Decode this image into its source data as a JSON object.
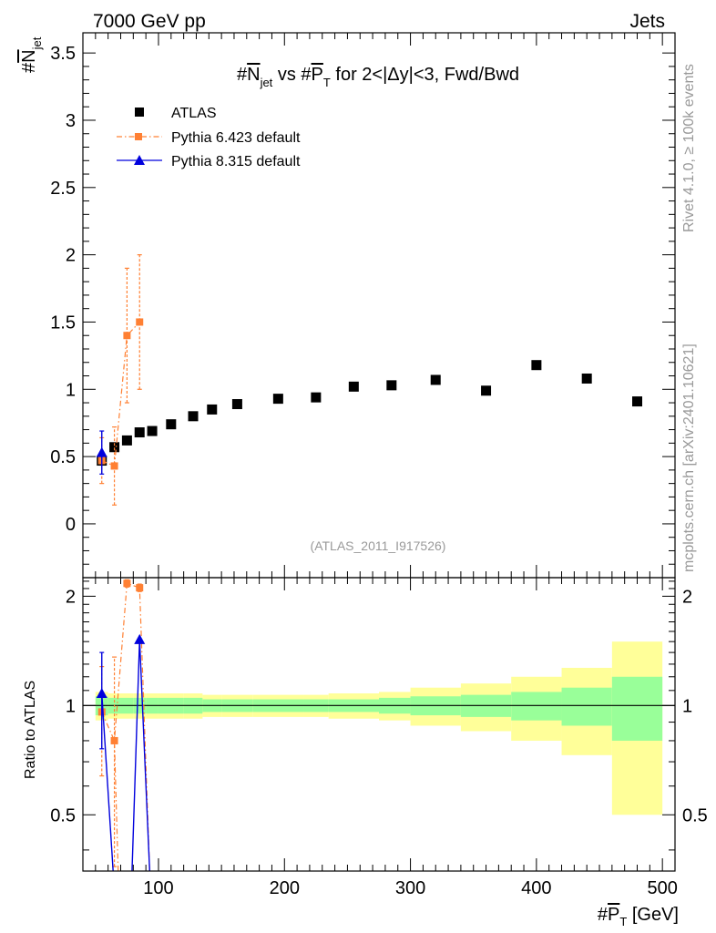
{
  "header": {
    "left": "7000 GeV pp",
    "right": "Jets"
  },
  "side_labels": {
    "rivet": "Rivet 4.1.0, ≥ 100k events",
    "mcplots": "mcplots.cern.ch [arXiv:2401.10621]"
  },
  "chart_data": {
    "type": "scatter",
    "title": "#N̅jet vs #P̅T for 2<|Δy|<3, Fwd/Bwd",
    "title_parts": {
      "prefix": "#",
      "n": "N",
      "jet": "jet",
      "mid": " vs #",
      "p": "P",
      "t": "T",
      "suffix": " for 2<|Δy|<3, Fwd/Bwd"
    },
    "ylabel": {
      "prefix": "#",
      "n": "N",
      "sub": "jet"
    },
    "xlabel": {
      "prefix": "#",
      "p": "P",
      "sub": "T",
      "unit": " [GeV]"
    },
    "ratio_ylabel": "Ratio to ATLAS",
    "watermark": "(ATLAS_2011_I917526)",
    "xlim": [
      40,
      510
    ],
    "ylim_main": [
      -0.4,
      3.65
    ],
    "ylim_ratio": [
      0.35,
      2.25
    ],
    "x_ticks": [
      100,
      200,
      300,
      400,
      500
    ],
    "x_tick_labels": [
      "100",
      "200",
      "300",
      "400",
      "500"
    ],
    "y_ticks_main": [
      0,
      0.5,
      1,
      1.5,
      2,
      2.5,
      3,
      3.5
    ],
    "y_tick_labels_main": [
      "0",
      "0.5",
      "1",
      "1.5",
      "2",
      "2.5",
      "3",
      "3.5"
    ],
    "y_ticks_ratio": [
      0.5,
      1,
      2
    ],
    "y_tick_labels_ratio": [
      "0.5",
      "1",
      "2"
    ],
    "legend": [
      {
        "label": "ATLAS",
        "color": "#000000",
        "marker": "square",
        "line": "none"
      },
      {
        "label": "Pythia 6.423 default",
        "color": "#ff8033",
        "marker": "square",
        "line": "dashdot"
      },
      {
        "label": "Pythia 8.315 default",
        "color": "#0000dd",
        "marker": "triangle",
        "line": "solid"
      }
    ],
    "series": [
      {
        "name": "ATLAS",
        "color": "#000000",
        "x": [
          55,
          65,
          75,
          85,
          95,
          110,
          127.5,
          142.5,
          162.5,
          195,
          225,
          255,
          285,
          320,
          360,
          400,
          440,
          480
        ],
        "y": [
          0.47,
          0.57,
          0.62,
          0.68,
          0.69,
          0.74,
          0.8,
          0.85,
          0.89,
          0.93,
          0.94,
          1.02,
          1.03,
          1.07,
          0.99,
          1.18,
          1.08,
          0.91
        ]
      },
      {
        "name": "Pythia 6.423 default",
        "color": "#ff8033",
        "x": [
          55,
          65,
          75,
          85
        ],
        "y": [
          0.47,
          0.43,
          1.4,
          1.5
        ],
        "yerr": [
          0.17,
          0.29,
          0.5,
          0.5
        ]
      },
      {
        "name": "Pythia 8.315 default",
        "color": "#0000dd",
        "x": [
          55
        ],
        "y": [
          0.53
        ],
        "yerr": [
          0.16
        ]
      }
    ],
    "ratio": {
      "bands": {
        "edges": [
          50,
          60,
          70,
          80,
          90,
          100,
          120,
          135,
          150,
          175,
          215,
          235,
          275,
          300,
          340,
          380,
          420,
          460,
          500
        ],
        "inner": [
          0.06,
          0.05,
          0.05,
          0.05,
          0.05,
          0.05,
          0.05,
          0.04,
          0.04,
          0.04,
          0.04,
          0.04,
          0.05,
          0.06,
          0.07,
          0.09,
          0.12,
          0.2
        ],
        "outer": [
          0.09,
          0.08,
          0.08,
          0.08,
          0.08,
          0.08,
          0.08,
          0.07,
          0.07,
          0.07,
          0.07,
          0.08,
          0.09,
          0.12,
          0.15,
          0.2,
          0.27,
          0.5
        ],
        "inner_color": "#99ff99",
        "outer_color": "#ffff99"
      },
      "series": [
        {
          "name": "Pythia 6.423 default",
          "color": "#ff8033",
          "x": [
            55,
            65,
            75,
            85
          ],
          "y": [
            0.96,
            0.8,
            2.17,
            2.11
          ],
          "yerr": [
            0.32,
            0.56,
            0.05,
            0.05
          ],
          "line_end": [
            68,
            0.3
          ]
        },
        {
          "name": "Pythia 8.315 default",
          "color": "#0000dd",
          "x": [
            55,
            85
          ],
          "y": [
            1.08,
            1.52
          ],
          "yerr": [
            0.32,
            0.0
          ],
          "line_segments": [
            [
              [
                55,
                1.08
              ],
              [
                64,
                0.3
              ]
            ],
            [
              [
                79,
                0.3
              ],
              [
                85,
                1.52
              ],
              [
                93,
                0.3
              ]
            ]
          ]
        }
      ]
    }
  }
}
